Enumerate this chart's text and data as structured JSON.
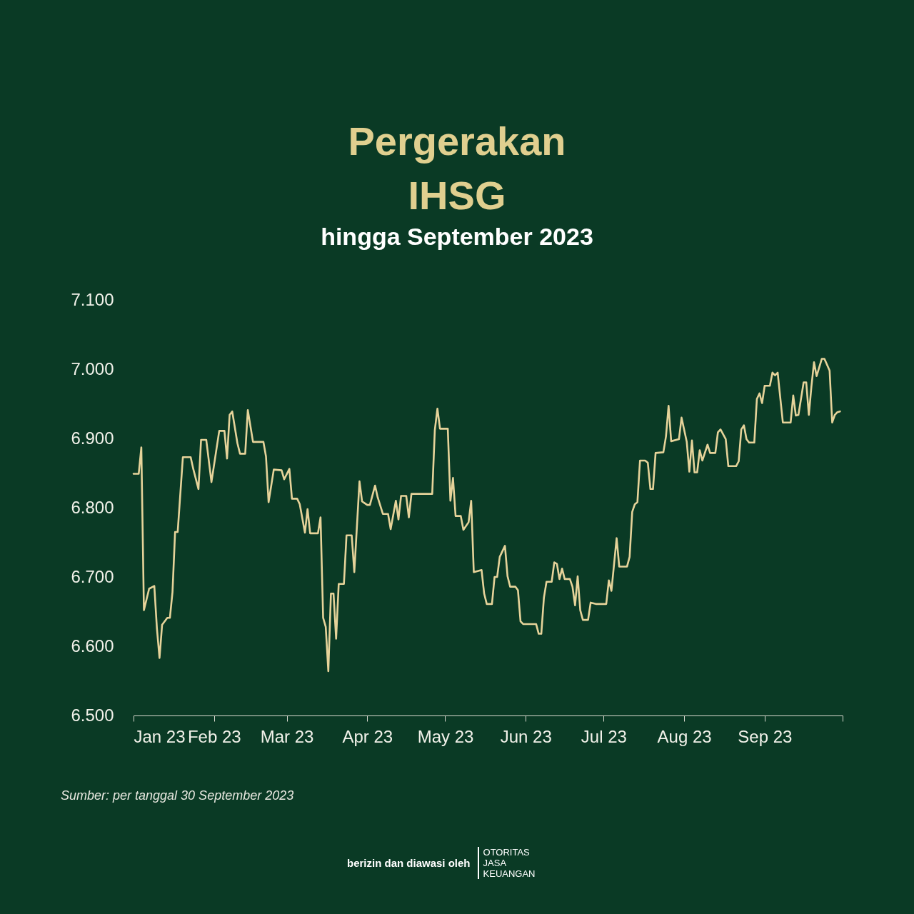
{
  "chart_data": {
    "type": "line",
    "title": "Pergerakan IHSG",
    "subtitle": "hingga September 2023",
    "annotations": [
      "Sumber: per tanggal 30 September 2023",
      "berizin dan diawasi oleh",
      "OTORITAS JASA KEUANGAN"
    ],
    "xlim": [
      "2023-01-01",
      "2023-10-01"
    ],
    "xticks": [
      {
        "value": "2023-01-01",
        "label": "Jan 23"
      },
      {
        "value": "2023-02-01",
        "label": "Feb 23"
      },
      {
        "value": "2023-03-01",
        "label": "Mar 23"
      },
      {
        "value": "2023-04-01",
        "label": "Apr 23"
      },
      {
        "value": "2023-05-01",
        "label": "May 23"
      },
      {
        "value": "2023-06-01",
        "label": "Jun 23"
      },
      {
        "value": "2023-07-01",
        "label": "Jul 23"
      },
      {
        "value": "2023-08-01",
        "label": "Aug 23"
      },
      {
        "value": "2023-09-01",
        "label": "Sep 23"
      },
      {
        "value": "2023-10-01",
        "label": null
      }
    ],
    "ylim": [
      6500,
      7100
    ],
    "yticks": [
      {
        "value": 6500,
        "label": "6.500"
      },
      {
        "value": 6600,
        "label": "6.600"
      },
      {
        "value": 6700,
        "label": "6.700"
      },
      {
        "value": 6800,
        "label": "6.800"
      },
      {
        "value": 6900,
        "label": "6.900"
      },
      {
        "value": 7000,
        "label": "7.000"
      },
      {
        "value": 7100,
        "label": "7.100"
      }
    ],
    "grid": false,
    "marker": "none",
    "line_style": "solid",
    "x": [
      "2023-01-01",
      "2023-01-03",
      "2023-01-04",
      "2023-01-05",
      "2023-01-07",
      "2023-01-09",
      "2023-01-10",
      "2023-01-11",
      "2023-01-12",
      "2023-01-14",
      "2023-01-15",
      "2023-01-16",
      "2023-01-17",
      "2023-01-18",
      "2023-01-20",
      "2023-01-23",
      "2023-01-24",
      "2023-01-26",
      "2023-01-27",
      "2023-01-29",
      "2023-01-31",
      "2023-02-03",
      "2023-02-05",
      "2023-02-06",
      "2023-02-07",
      "2023-02-08",
      "2023-02-10",
      "2023-02-11",
      "2023-02-13",
      "2023-02-14",
      "2023-02-16",
      "2023-02-20",
      "2023-02-21",
      "2023-02-22",
      "2023-02-24",
      "2023-02-27",
      "2023-02-28",
      "2023-03-02",
      "2023-03-03",
      "2023-03-05",
      "2023-03-06",
      "2023-03-08",
      "2023-03-09",
      "2023-03-10",
      "2023-03-13",
      "2023-03-14",
      "2023-03-15",
      "2023-03-16",
      "2023-03-17",
      "2023-03-18",
      "2023-03-19",
      "2023-03-20",
      "2023-03-21",
      "2023-03-23",
      "2023-03-24",
      "2023-03-26",
      "2023-03-27",
      "2023-03-29",
      "2023-03-30",
      "2023-04-01",
      "2023-04-02",
      "2023-04-04",
      "2023-04-05",
      "2023-04-07",
      "2023-04-09",
      "2023-04-10",
      "2023-04-12",
      "2023-04-13",
      "2023-04-14",
      "2023-04-16",
      "2023-04-17",
      "2023-04-18",
      "2023-04-26",
      "2023-04-27",
      "2023-04-28",
      "2023-04-29",
      "2023-05-02",
      "2023-05-03",
      "2023-05-04",
      "2023-05-05",
      "2023-05-07",
      "2023-05-08",
      "2023-05-10",
      "2023-05-11",
      "2023-05-12",
      "2023-05-15",
      "2023-05-16",
      "2023-05-17",
      "2023-05-19",
      "2023-05-20",
      "2023-05-21",
      "2023-05-22",
      "2023-05-24",
      "2023-05-25",
      "2023-05-26",
      "2023-05-28",
      "2023-05-29",
      "2023-05-30",
      "2023-05-31",
      "2023-06-05",
      "2023-06-06",
      "2023-06-07",
      "2023-06-08",
      "2023-06-09",
      "2023-06-11",
      "2023-06-12",
      "2023-06-13",
      "2023-06-14",
      "2023-06-15",
      "2023-06-16",
      "2023-06-18",
      "2023-06-19",
      "2023-06-20",
      "2023-06-21",
      "2023-06-22",
      "2023-06-23",
      "2023-06-25",
      "2023-06-26",
      "2023-06-28",
      "2023-07-02",
      "2023-07-03",
      "2023-07-04",
      "2023-07-06",
      "2023-07-07",
      "2023-07-10",
      "2023-07-11",
      "2023-07-12",
      "2023-07-13",
      "2023-07-14",
      "2023-07-15",
      "2023-07-17",
      "2023-07-18",
      "2023-07-19",
      "2023-07-20",
      "2023-07-21",
      "2023-07-24",
      "2023-07-25",
      "2023-07-26",
      "2023-07-27",
      "2023-07-30",
      "2023-07-31",
      "2023-08-02",
      "2023-08-03",
      "2023-08-04",
      "2023-08-05",
      "2023-08-06",
      "2023-08-07",
      "2023-08-08",
      "2023-08-10",
      "2023-08-11",
      "2023-08-13",
      "2023-08-14",
      "2023-08-15",
      "2023-08-17",
      "2023-08-18",
      "2023-08-21",
      "2023-08-22",
      "2023-08-23",
      "2023-08-24",
      "2023-08-25",
      "2023-08-26",
      "2023-08-28",
      "2023-08-29",
      "2023-08-30",
      "2023-08-31",
      "2023-09-01",
      "2023-09-03",
      "2023-09-04",
      "2023-09-05",
      "2023-09-06",
      "2023-09-08",
      "2023-09-11",
      "2023-09-12",
      "2023-09-13",
      "2023-09-14",
      "2023-09-16",
      "2023-09-17",
      "2023-09-18",
      "2023-09-19",
      "2023-09-20",
      "2023-09-21",
      "2023-09-23",
      "2023-09-24",
      "2023-09-26",
      "2023-09-27",
      "2023-09-28",
      "2023-09-29",
      "2023-09-30"
    ],
    "series": [
      {
        "color": "#e6d39a",
        "values": [
          6849,
          6849,
          6887,
          6652,
          6683,
          6687,
          6626,
          6583,
          6631,
          6641,
          6641,
          6678,
          6765,
          6765,
          6873,
          6873,
          6856,
          6827,
          6898,
          6898,
          6837,
          6911,
          6911,
          6871,
          6934,
          6939,
          6893,
          6878,
          6878,
          6941,
          6895,
          6895,
          6874,
          6808,
          6855,
          6854,
          6841,
          6856,
          6813,
          6813,
          6805,
          6764,
          6798,
          6763,
          6763,
          6786,
          6641,
          6628,
          6564,
          6676,
          6676,
          6611,
          6690,
          6690,
          6760,
          6760,
          6707,
          6838,
          6809,
          6804,
          6804,
          6832,
          6815,
          6791,
          6791,
          6769,
          6810,
          6783,
          6817,
          6817,
          6786,
          6820,
          6820,
          6912,
          6943,
          6914,
          6914,
          6810,
          6843,
          6788,
          6788,
          6768,
          6779,
          6810,
          6707,
          6710,
          6676,
          6661,
          6661,
          6700,
          6700,
          6729,
          6745,
          6701,
          6686,
          6686,
          6681,
          6636,
          6632,
          6632,
          6618,
          6618,
          6670,
          6693,
          6693,
          6721,
          6719,
          6697,
          6712,
          6697,
          6697,
          6686,
          6659,
          6701,
          6652,
          6638,
          6638,
          6663,
          6661,
          6661,
          6695,
          6680,
          6756,
          6715,
          6715,
          6729,
          6794,
          6805,
          6808,
          6868,
          6868,
          6865,
          6827,
          6827,
          6879,
          6880,
          6903,
          6947,
          6896,
          6899,
          6930,
          6895,
          6852,
          6897,
          6851,
          6851,
          6883,
          6868,
          6891,
          6879,
          6879,
          6909,
          6913,
          6899,
          6860,
          6860,
          6867,
          6913,
          6919,
          6899,
          6894,
          6894,
          6957,
          6965,
          6951,
          6976,
          6976,
          6995,
          6991,
          6995,
          6923,
          6923,
          6962,
          6933,
          6934,
          6981,
          6981,
          6934,
          6975,
          7010,
          6990,
          7015,
          7015,
          6998,
          6923,
          6934,
          6938,
          6939
        ]
      }
    ]
  }
}
